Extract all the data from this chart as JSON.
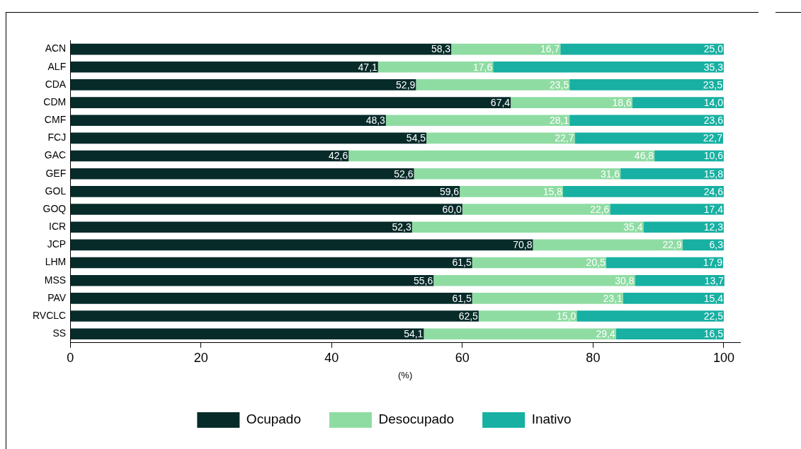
{
  "chart_data": {
    "type": "bar",
    "orientation": "horizontal",
    "stacked": true,
    "xlabel": "(%)",
    "legend": "bottom",
    "grid": false,
    "categories": [
      "ACN",
      "ALF",
      "CDA",
      "CDM",
      "CMF",
      "FCJ",
      "GAC",
      "GEF",
      "GOL",
      "GOQ",
      "ICR",
      "JCP",
      "LHM",
      "MSS",
      "PAV",
      "RVCLC",
      "SS"
    ],
    "xlim": [
      0,
      102.5
    ],
    "xticks": [
      0,
      20,
      40,
      60,
      80,
      100
    ],
    "series": [
      {
        "name": "Ocupado",
        "color": "#062b29",
        "values": [
          58.3,
          47.1,
          52.9,
          67.4,
          48.3,
          54.5,
          42.6,
          52.6,
          59.6,
          60.0,
          52.3,
          70.8,
          61.5,
          55.6,
          61.5,
          62.5,
          54.1
        ],
        "value_labels": [
          "58,3",
          "47,1",
          "52,9",
          "67,4",
          "48,3",
          "54,5",
          "42,6",
          "52,6",
          "59,6",
          "60,0",
          "52,3",
          "70,8",
          "61,5",
          "55,6",
          "61,5",
          "62,5",
          "54,1"
        ]
      },
      {
        "name": "Desocupado",
        "color": "#8fdca3",
        "values": [
          16.7,
          17.6,
          23.5,
          18.6,
          28.1,
          22.7,
          46.8,
          31.6,
          15.8,
          22.6,
          35.4,
          22.9,
          20.5,
          30.8,
          23.1,
          15.0,
          29.4
        ],
        "value_labels": [
          "16,7",
          "17,6",
          "23,5",
          "18,6",
          "28,1",
          "22,7",
          "46,8",
          "31,6",
          "15,8",
          "22,6",
          "35,4",
          "22,9",
          "20,5",
          "30,8",
          "23,1",
          "15,0",
          "29,4"
        ]
      },
      {
        "name": "Inativo",
        "color": "#17b0a2",
        "values": [
          25.0,
          35.3,
          23.5,
          14.0,
          23.6,
          22.7,
          10.6,
          15.8,
          24.6,
          17.4,
          12.3,
          6.3,
          17.9,
          13.7,
          15.4,
          22.5,
          16.5
        ],
        "value_labels": [
          "25,0",
          "35,3",
          "23,5",
          "14,0",
          "23,6",
          "22,7",
          "10,6",
          "15,8",
          "24,6",
          "17,4",
          "12,3",
          "6,3",
          "17,9",
          "13,7",
          "15,4",
          "22,5",
          "16,5"
        ]
      }
    ]
  }
}
